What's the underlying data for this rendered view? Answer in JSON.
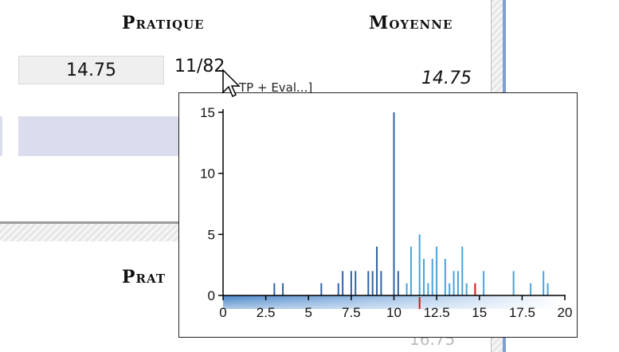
{
  "headers": {
    "pratique": "Pratique",
    "moyenne": "Moyenne",
    "pratique_lower": "Prat"
  },
  "row": {
    "grade": "14.75",
    "rank": "11/82",
    "average": "14.75"
  },
  "peek": {
    "tooltip_text": "TP + Eval...]",
    "bottom_value": "16.75"
  },
  "colors": {
    "bar_blue_dark": "#2f63a3",
    "bar_blue_light": "#4aa3da",
    "marker_red": "#e01010",
    "band": "#dcdcef"
  },
  "chart_data": {
    "type": "bar",
    "xlim": [
      0,
      20
    ],
    "ylim": [
      0,
      15
    ],
    "xticks": [
      "0",
      "2.5",
      "5",
      "7.5",
      "10",
      "12.5",
      "15",
      "17.5",
      "20"
    ],
    "yticks": [
      "0",
      "5",
      "10",
      "15"
    ],
    "bars": [
      {
        "x": 3.0,
        "count": 1
      },
      {
        "x": 3.5,
        "count": 1
      },
      {
        "x": 5.75,
        "count": 1
      },
      {
        "x": 6.75,
        "count": 1
      },
      {
        "x": 7.0,
        "count": 2
      },
      {
        "x": 7.5,
        "count": 2
      },
      {
        "x": 7.75,
        "count": 2
      },
      {
        "x": 8.5,
        "count": 2
      },
      {
        "x": 8.75,
        "count": 2
      },
      {
        "x": 9.0,
        "count": 4
      },
      {
        "x": 9.25,
        "count": 2
      },
      {
        "x": 10.0,
        "count": 15
      },
      {
        "x": 10.25,
        "count": 2
      },
      {
        "x": 10.75,
        "count": 1
      },
      {
        "x": 11.0,
        "count": 4
      },
      {
        "x": 11.5,
        "count": 5
      },
      {
        "x": 11.75,
        "count": 3
      },
      {
        "x": 12.0,
        "count": 1
      },
      {
        "x": 12.25,
        "count": 3
      },
      {
        "x": 12.5,
        "count": 4
      },
      {
        "x": 13.0,
        "count": 3
      },
      {
        "x": 13.25,
        "count": 1
      },
      {
        "x": 13.5,
        "count": 2
      },
      {
        "x": 13.75,
        "count": 2
      },
      {
        "x": 14.0,
        "count": 4
      },
      {
        "x": 14.25,
        "count": 1
      },
      {
        "x": 15.25,
        "count": 2
      },
      {
        "x": 17.0,
        "count": 2
      },
      {
        "x": 18.0,
        "count": 1
      },
      {
        "x": 18.75,
        "count": 2
      },
      {
        "x": 19.0,
        "count": 1
      }
    ],
    "highlight": {
      "x": 14.75,
      "count": 1
    },
    "axis_marker": {
      "x": 11.5
    }
  }
}
